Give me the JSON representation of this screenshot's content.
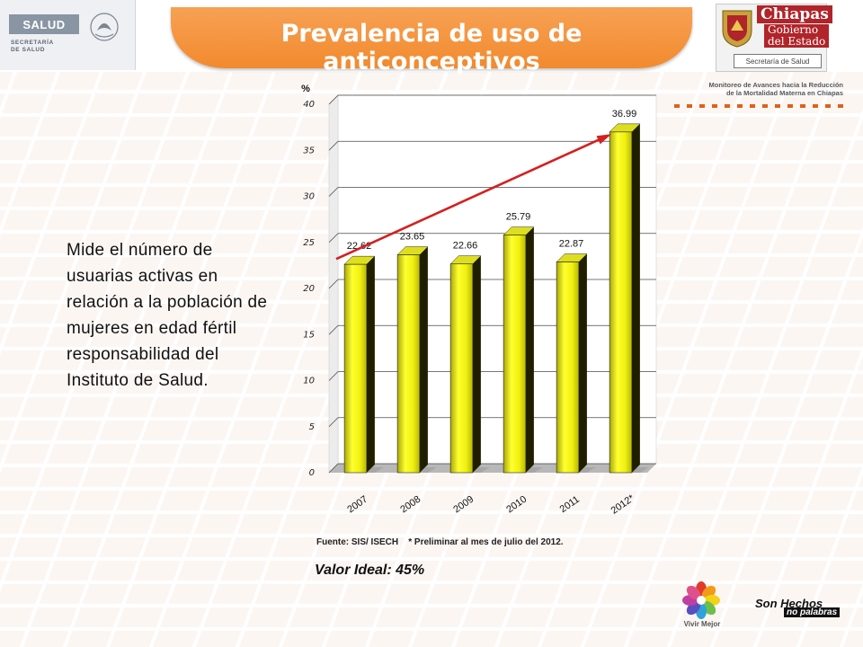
{
  "header": {
    "title": "Prevalencia de uso de anticonceptivos",
    "left_logo": {
      "salud": "SALUD",
      "secretaria": "SECRETARÍA\nDE SALUD"
    },
    "right_logo": {
      "chiapas": "Chiapas",
      "gobierno_line1": "Gobierno",
      "gobierno_line2": "del Estado",
      "secretaria": "Secretaría de Salud"
    },
    "monitoreo_line1": "Monitoreo de Avances hacia la Reducción",
    "monitoreo_line2": "de la Mortalidad Materna en Chiapas"
  },
  "description": "Mide el número de usuarias activas en relación a la población de mujeres en edad fértil responsabilidad del Instituto de Salud.",
  "chart_data": {
    "type": "bar",
    "ylabel": "%",
    "categories": [
      "2007",
      "2008",
      "2009",
      "2010",
      "2011",
      "2012*"
    ],
    "values": [
      22.62,
      23.65,
      22.66,
      25.79,
      22.87,
      36.99
    ],
    "value_labels": [
      "22.62",
      "23.65",
      "22.66",
      "25.79",
      "22.87",
      "36.99"
    ],
    "ylim": [
      0,
      40
    ],
    "yticks": [
      0,
      5,
      10,
      15,
      20,
      25,
      30,
      35,
      40
    ],
    "grid": true,
    "trend_arrow": true,
    "colors": {
      "bar": "#f2f20a",
      "bar_side": "#9a9a10",
      "arrow": "#d42020",
      "grid": "#4a4a4a"
    }
  },
  "footer": {
    "source": "Fuente: SIS/ ISECH    * Preliminar al mes de julio del 2012.",
    "ideal": "Valor Ideal: 45%",
    "vivir_mejor": "Vivir Mejor",
    "son_hechos": "Son Hechos",
    "no_palabras": "no palabras"
  },
  "colors": {
    "banner": "#f28a2e",
    "chiapas_red": "#b0242a",
    "background_grid": "#f6ddd0"
  }
}
